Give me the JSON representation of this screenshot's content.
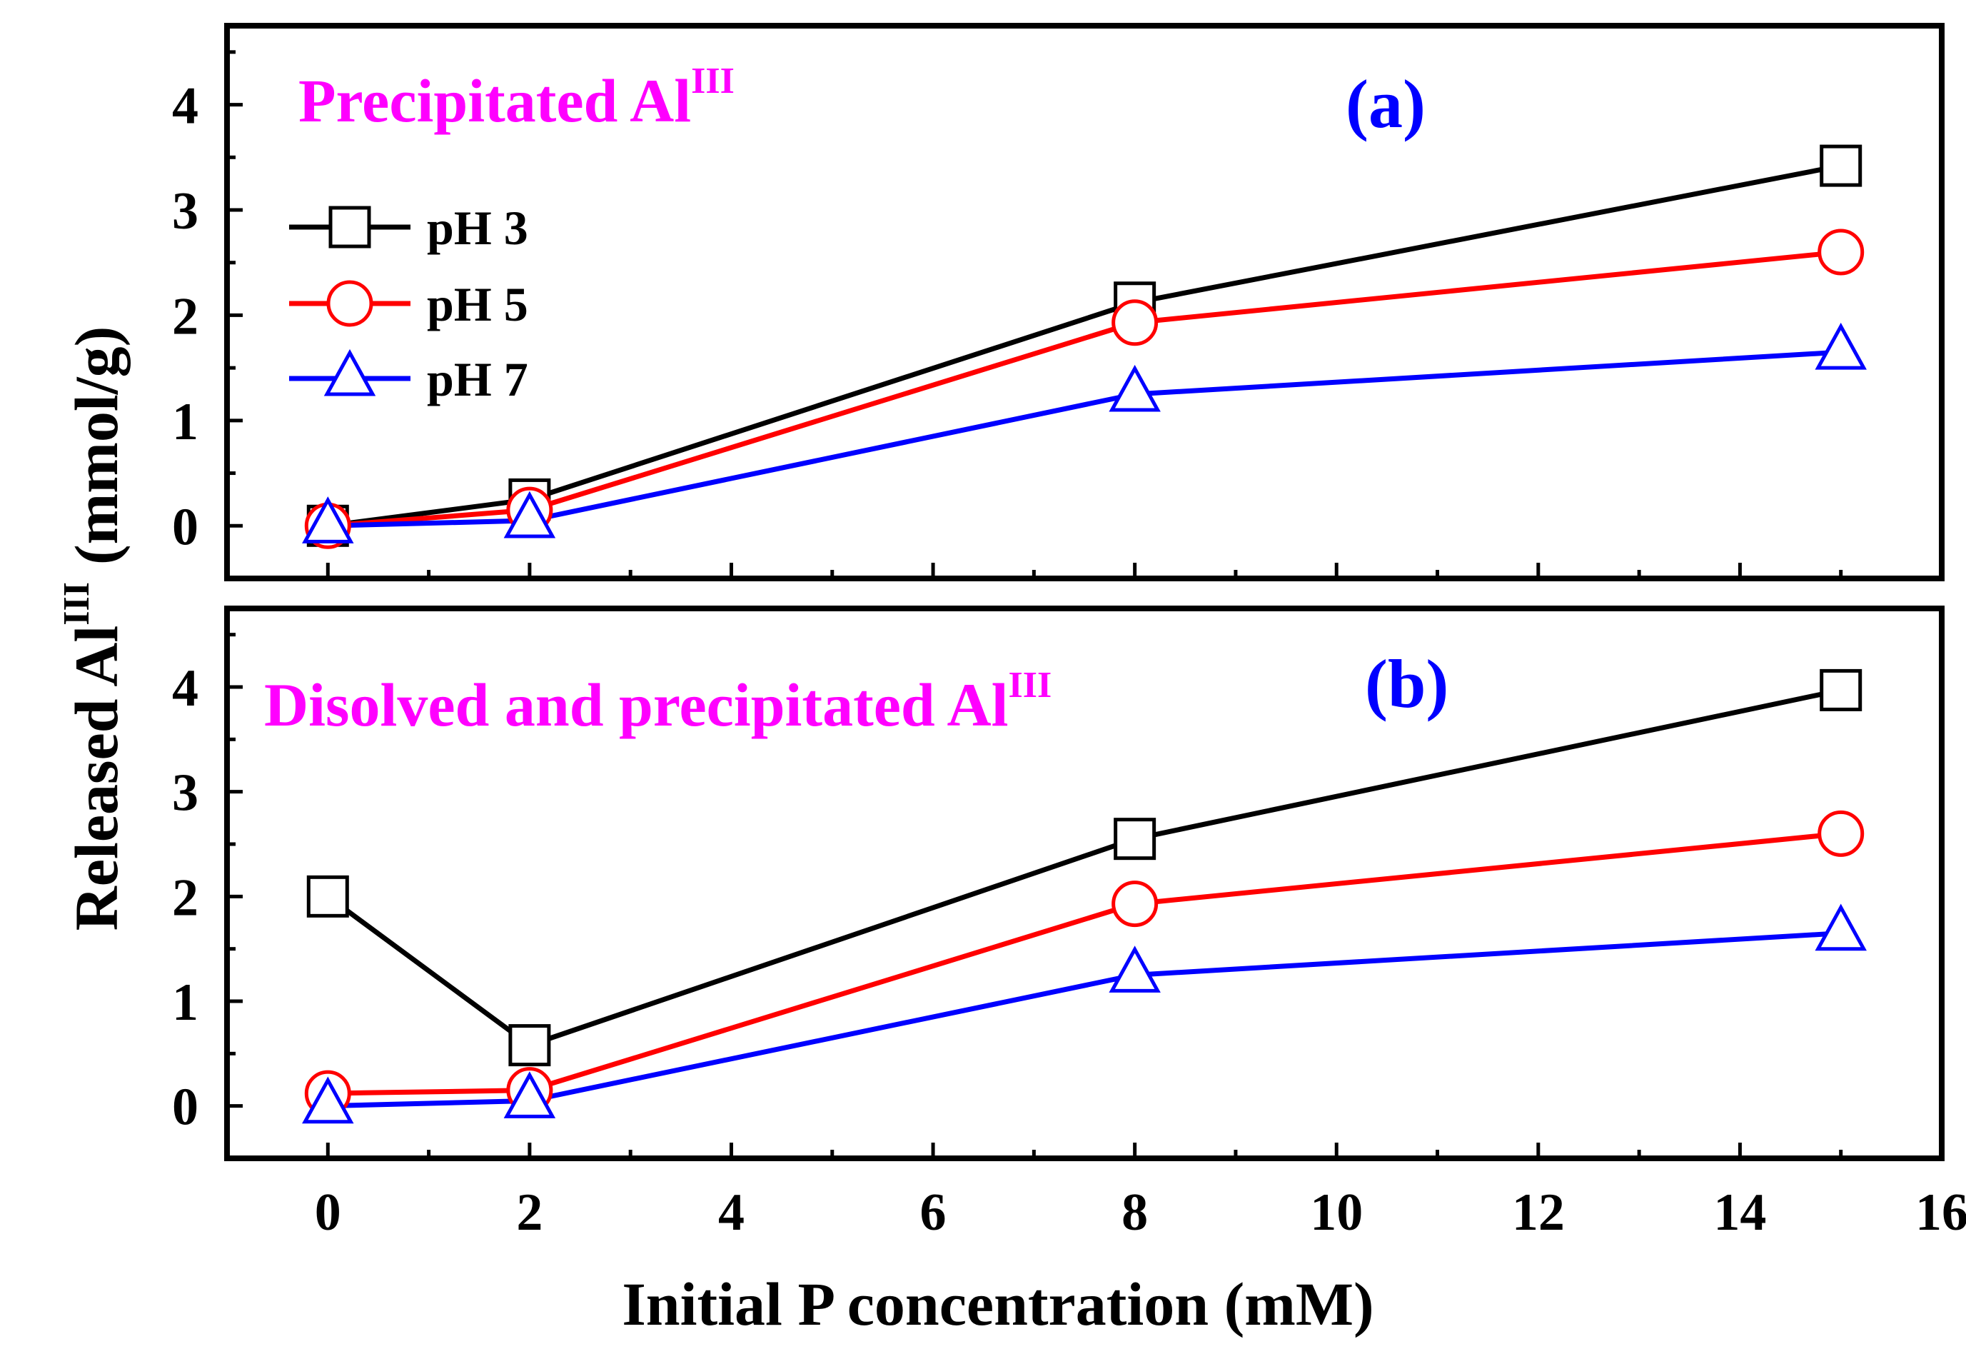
{
  "chart_data": [
    {
      "type": "line",
      "panel_label": "(a)",
      "title": "Precipitated Al",
      "title_superscript": "III",
      "x": [
        0,
        2,
        8,
        15
      ],
      "xlim": [
        -1,
        16
      ],
      "ylim": [
        -0.5,
        4.75
      ],
      "yticks": [
        "0",
        "1",
        "2",
        "3",
        "4"
      ],
      "series": [
        {
          "name": "pH 3",
          "marker": "square",
          "color": "#000000",
          "values": [
            0.0,
            0.25,
            2.12,
            3.42
          ]
        },
        {
          "name": "pH 5",
          "marker": "circle",
          "color": "#ff0000",
          "values": [
            0.0,
            0.15,
            1.93,
            2.6
          ]
        },
        {
          "name": "pH 7",
          "marker": "triangle",
          "color": "#0000ff",
          "values": [
            0.0,
            0.05,
            1.25,
            1.65
          ]
        }
      ],
      "legend": "upper-left",
      "title_color": "#ff00ff",
      "panel_label_color": "#0000ff"
    },
    {
      "type": "line",
      "panel_label": "(b)",
      "title": "Disolved and precipitated Al",
      "title_superscript": "III",
      "x": [
        0,
        2,
        8,
        15
      ],
      "xlim": [
        -1,
        16
      ],
      "ylim": [
        -0.5,
        4.75
      ],
      "yticks": [
        "0",
        "1",
        "2",
        "3",
        "4"
      ],
      "xticks": [
        "0",
        "2",
        "4",
        "6",
        "8",
        "10",
        "12",
        "14",
        "16"
      ],
      "series": [
        {
          "name": "pH 3",
          "marker": "square",
          "color": "#000000",
          "values": [
            2.0,
            0.58,
            2.55,
            3.97
          ]
        },
        {
          "name": "pH 5",
          "marker": "circle",
          "color": "#ff0000",
          "values": [
            0.12,
            0.15,
            1.93,
            2.6
          ]
        },
        {
          "name": "pH 7",
          "marker": "triangle",
          "color": "#0000ff",
          "values": [
            0.0,
            0.05,
            1.25,
            1.65
          ]
        }
      ],
      "title_color": "#ff00ff",
      "panel_label_color": "#0000ff"
    }
  ],
  "axes": {
    "xlabel": "Initial P concentration (mM)",
    "ylabel": "Released Al",
    "ylabel_superscript": "III",
    "ylabel_units": "(mmol/g)"
  }
}
